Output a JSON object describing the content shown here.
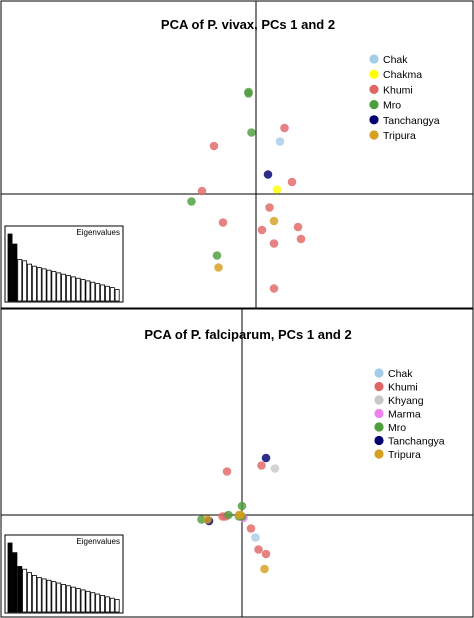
{
  "chart_data": [
    {
      "type": "scatter",
      "title": "PCA of P. vivax, PCs 1 and 2",
      "legend_position": "top-right",
      "series": [
        {
          "name": "Chak",
          "color": "#a6cde6",
          "points": [
            [
              0.16,
              0.35
            ]
          ]
        },
        {
          "name": "Chakma",
          "color": "#ffff00",
          "points": [
            [
              0.14,
              0.03
            ]
          ]
        },
        {
          "name": "Khumi",
          "color": "#e06666",
          "points": [
            [
              0.19,
              0.44
            ],
            [
              -0.28,
              0.32
            ],
            [
              0.24,
              0.08
            ],
            [
              -0.36,
              0.02
            ],
            [
              -0.22,
              -0.19
            ],
            [
              0.09,
              -0.09
            ],
            [
              0.04,
              -0.24
            ],
            [
              0.12,
              -0.33
            ],
            [
              0.28,
              -0.22
            ],
            [
              0.3,
              -0.3
            ],
            [
              0.12,
              -0.63
            ]
          ]
        },
        {
          "name": "Mro",
          "color": "#4d9e3c",
          "points": [
            [
              -0.05,
              0.68
            ],
            [
              -0.05,
              0.67
            ],
            [
              -0.03,
              0.41
            ],
            [
              -0.43,
              -0.05
            ],
            [
              -0.26,
              -0.41
            ]
          ]
        },
        {
          "name": "Tanchangya",
          "color": "#000070",
          "points": [
            [
              0.08,
              0.13
            ]
          ]
        },
        {
          "name": "Tripura",
          "color": "#d6a020",
          "points": [
            [
              0.12,
              -0.18
            ],
            [
              -0.25,
              -0.49
            ]
          ]
        }
      ],
      "eigenvalues": {
        "label": "Eigenvalues",
        "values": [
          100,
          85,
          62,
          60,
          55,
          52,
          50,
          48,
          46,
          44,
          42,
          40,
          38,
          36,
          34,
          32,
          30,
          28,
          26,
          24,
          22,
          20,
          17
        ],
        "highlighted_count": 2
      }
    },
    {
      "type": "scatter",
      "title": "PCA of P. falciparum, PCs 1 and 2",
      "legend_position": "top-right",
      "series": [
        {
          "name": "Chak",
          "color": "#a6cde6",
          "points": [
            [
              0.09,
              -0.15
            ]
          ]
        },
        {
          "name": "Khumi",
          "color": "#e06666",
          "points": [
            [
              -0.1,
              0.29
            ],
            [
              0.13,
              0.33
            ],
            [
              -0.13,
              -0.01
            ],
            [
              -0.11,
              -0.01
            ],
            [
              0.06,
              -0.09
            ],
            [
              0.11,
              -0.23
            ],
            [
              0.16,
              -0.26
            ]
          ]
        },
        {
          "name": "Khyang",
          "color": "#c8c8c8",
          "points": [
            [
              0.22,
              0.31
            ]
          ]
        },
        {
          "name": "Marma",
          "color": "#ee82ee",
          "points": [
            [
              0.01,
              -0.02
            ]
          ]
        },
        {
          "name": "Mro",
          "color": "#4d9e3c",
          "points": [
            [
              0.0,
              0.06
            ],
            [
              -0.27,
              -0.03
            ],
            [
              -0.09,
              0.0
            ],
            [
              -0.02,
              -0.01
            ],
            [
              0.0,
              -0.01
            ]
          ]
        },
        {
          "name": "Tanchangya",
          "color": "#000070",
          "points": [
            [
              0.16,
              0.38
            ],
            [
              -0.22,
              -0.04
            ]
          ]
        },
        {
          "name": "Tripura",
          "color": "#d6a020",
          "points": [
            [
              -0.23,
              -0.03
            ],
            [
              -0.02,
              0.0
            ],
            [
              -0.01,
              0.0
            ],
            [
              0.15,
              -0.36
            ]
          ]
        }
      ],
      "eigenvalues": {
        "label": "Eigenvalues",
        "values": [
          100,
          86,
          66,
          62,
          57,
          53,
          50,
          48,
          46,
          44,
          42,
          40,
          38,
          36,
          34,
          32,
          30,
          28,
          26,
          24,
          22,
          20,
          18
        ],
        "highlighted_count": 3
      }
    }
  ]
}
